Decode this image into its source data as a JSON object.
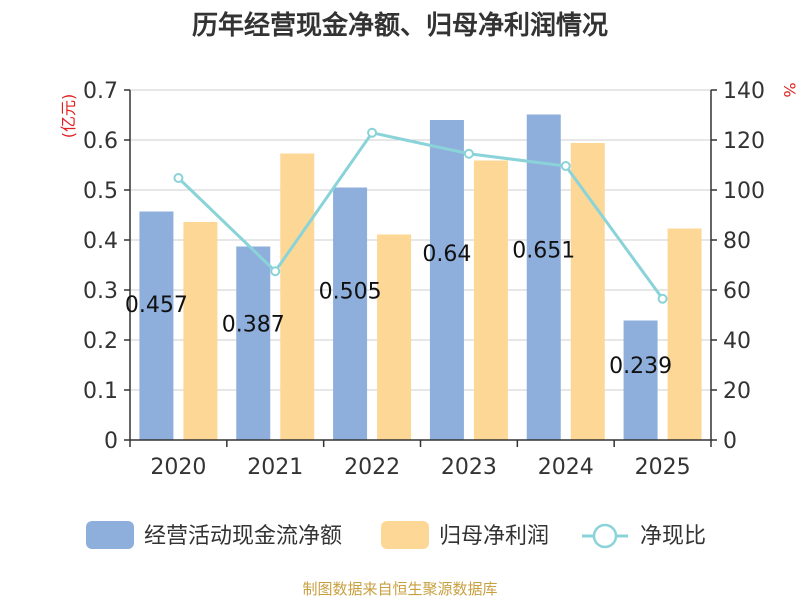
{
  "chart_data": {
    "type": "bar",
    "title": "历年经营现金净额、归母净利润情况",
    "categories": [
      "2020",
      "2021",
      "2022",
      "2023",
      "2024",
      "2025"
    ],
    "series": [
      {
        "name": "经营活动现金流净额",
        "type": "bar",
        "axis": "left",
        "color": "#8eaedb",
        "values": [
          0.457,
          0.387,
          0.505,
          0.64,
          0.651,
          0.239
        ],
        "labels": [
          "0.457",
          "0.387",
          "0.505",
          "0.64",
          "0.651",
          "0.239"
        ]
      },
      {
        "name": "归母净利润",
        "type": "bar",
        "axis": "left",
        "color": "#fdd796",
        "values": [
          0.436,
          0.573,
          0.411,
          0.559,
          0.594,
          0.423
        ]
      },
      {
        "name": "净现比",
        "type": "line",
        "axis": "right",
        "color": "#8ad3d8",
        "values": [
          104.8,
          67.5,
          122.9,
          114.5,
          109.6,
          56.5
        ]
      }
    ],
    "yLeft": {
      "unit": "(亿元)",
      "min": 0,
      "max": 0.7,
      "ticks": [
        "0",
        "0.1",
        "0.2",
        "0.3",
        "0.4",
        "0.5",
        "0.6",
        "0.7"
      ]
    },
    "yRight": {
      "unit": "%",
      "min": 0,
      "max": 140,
      "ticks": [
        "0",
        "20",
        "40",
        "60",
        "80",
        "100",
        "120",
        "140"
      ]
    },
    "legend_position": "bottom",
    "source": "制图数据来自恒生聚源数据库"
  }
}
